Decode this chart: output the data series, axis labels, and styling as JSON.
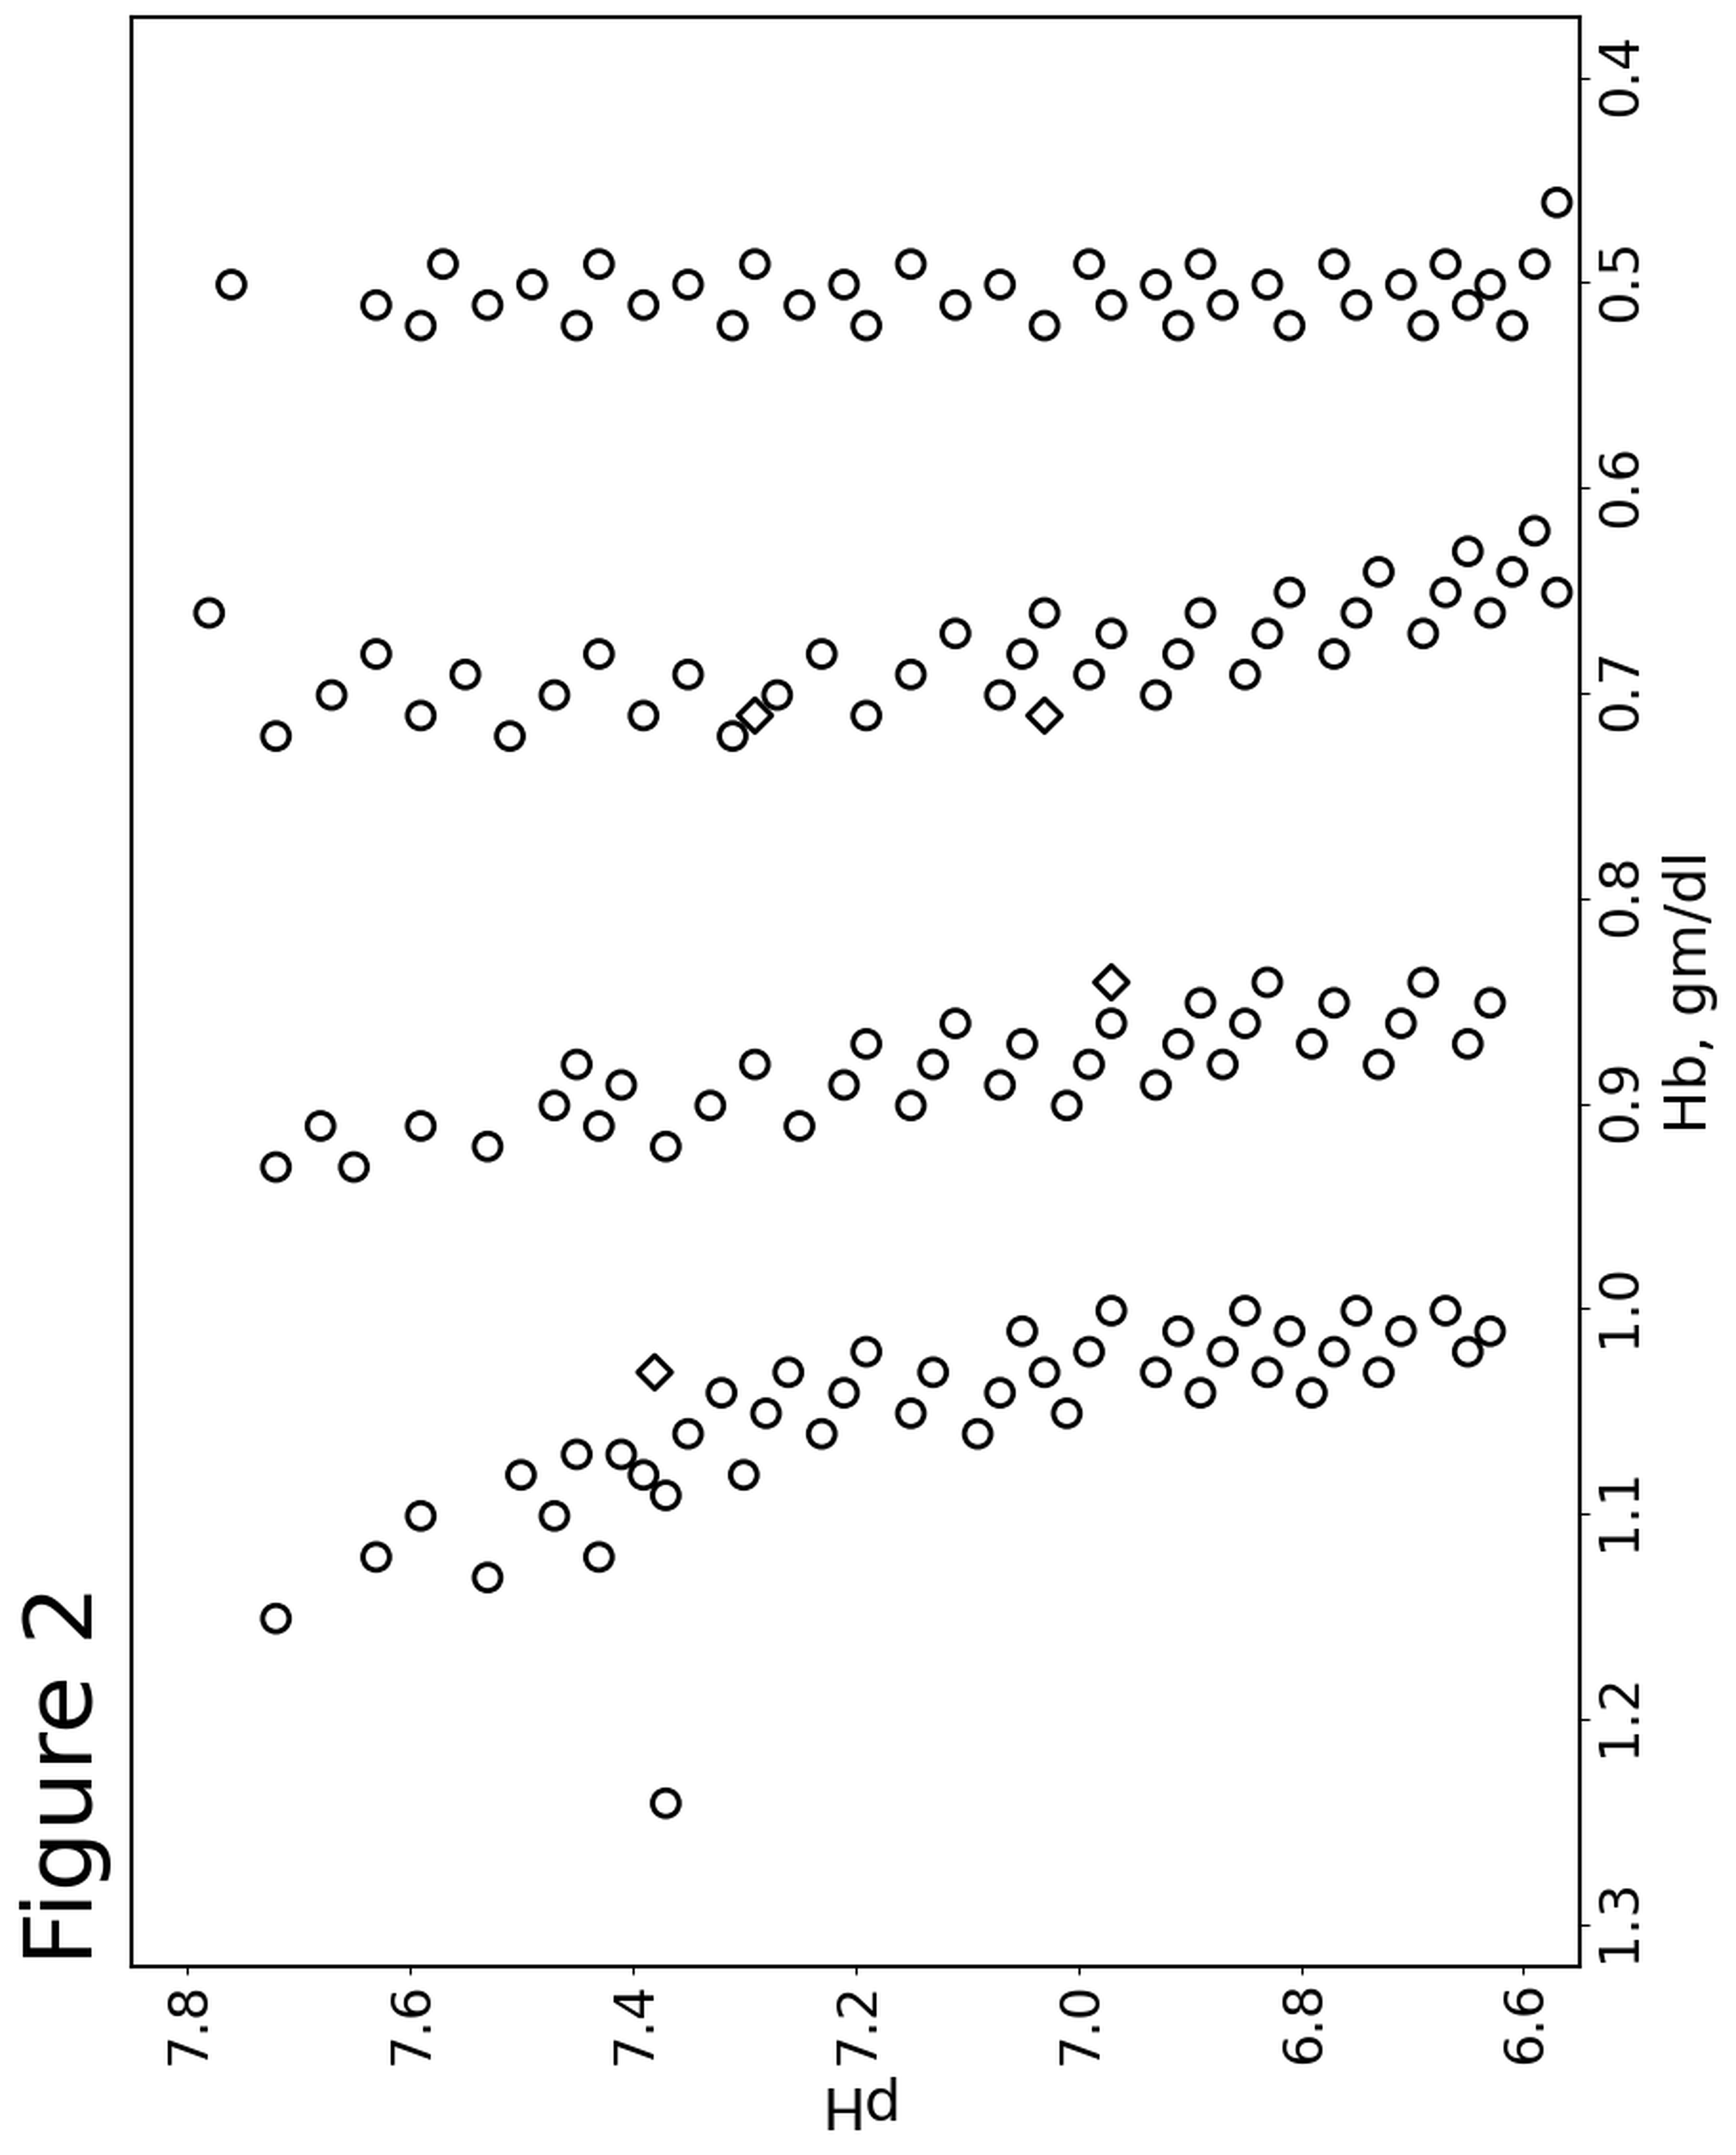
{
  "title": "Figure 2",
  "xlabel": "Hb, gm/dl",
  "ylabel": "pH",
  "xlim": [
    1.32,
    0.37
  ],
  "ylim": [
    6.55,
    7.85
  ],
  "xticks": [
    1.3,
    1.2,
    1.1,
    1.0,
    0.9,
    0.8,
    0.7,
    0.6,
    0.5,
    0.4
  ],
  "yticks": [
    6.6,
    6.8,
    7.0,
    7.2,
    7.4,
    7.6,
    7.8
  ],
  "circle_points": [
    [
      1.15,
      7.72
    ],
    [
      1.12,
      7.63
    ],
    [
      1.1,
      7.59
    ],
    [
      1.13,
      7.53
    ],
    [
      1.08,
      7.5
    ],
    [
      1.1,
      7.47
    ],
    [
      1.12,
      7.43
    ],
    [
      1.07,
      7.41
    ],
    [
      1.09,
      7.37
    ],
    [
      1.06,
      7.35
    ],
    [
      1.04,
      7.32
    ],
    [
      1.08,
      7.3
    ],
    [
      1.05,
      7.28
    ],
    [
      1.03,
      7.26
    ],
    [
      1.06,
      7.23
    ],
    [
      1.04,
      7.21
    ],
    [
      1.02,
      7.19
    ],
    [
      1.05,
      7.15
    ],
    [
      1.03,
      7.13
    ],
    [
      1.06,
      7.09
    ],
    [
      1.04,
      7.07
    ],
    [
      1.01,
      7.05
    ],
    [
      1.03,
      7.03
    ],
    [
      1.05,
      7.01
    ],
    [
      1.02,
      6.99
    ],
    [
      1.0,
      6.97
    ],
    [
      1.03,
      6.93
    ],
    [
      1.01,
      6.91
    ],
    [
      1.04,
      6.89
    ],
    [
      1.02,
      6.87
    ],
    [
      1.0,
      6.85
    ],
    [
      1.03,
      6.83
    ],
    [
      1.01,
      6.81
    ],
    [
      1.04,
      6.79
    ],
    [
      1.02,
      6.77
    ],
    [
      1.0,
      6.75
    ],
    [
      1.03,
      6.73
    ],
    [
      1.01,
      6.71
    ],
    [
      1.0,
      6.67
    ],
    [
      1.02,
      6.65
    ],
    [
      1.01,
      6.63
    ],
    [
      1.07,
      7.45
    ],
    [
      1.08,
      7.39
    ],
    [
      1.24,
      7.37
    ],
    [
      0.93,
      7.72
    ],
    [
      0.91,
      7.68
    ],
    [
      0.93,
      7.65
    ],
    [
      0.91,
      7.59
    ],
    [
      0.92,
      7.53
    ],
    [
      0.9,
      7.47
    ],
    [
      0.88,
      7.45
    ],
    [
      0.91,
      7.43
    ],
    [
      0.89,
      7.41
    ],
    [
      0.92,
      7.37
    ],
    [
      0.9,
      7.33
    ],
    [
      0.88,
      7.29
    ],
    [
      0.91,
      7.25
    ],
    [
      0.89,
      7.21
    ],
    [
      0.87,
      7.19
    ],
    [
      0.9,
      7.15
    ],
    [
      0.88,
      7.13
    ],
    [
      0.86,
      7.11
    ],
    [
      0.89,
      7.07
    ],
    [
      0.87,
      7.05
    ],
    [
      0.9,
      7.01
    ],
    [
      0.88,
      6.99
    ],
    [
      0.86,
      6.97
    ],
    [
      0.89,
      6.93
    ],
    [
      0.87,
      6.91
    ],
    [
      0.85,
      6.89
    ],
    [
      0.88,
      6.87
    ],
    [
      0.86,
      6.85
    ],
    [
      0.84,
      6.83
    ],
    [
      0.87,
      6.79
    ],
    [
      0.85,
      6.77
    ],
    [
      0.88,
      6.73
    ],
    [
      0.86,
      6.71
    ],
    [
      0.84,
      6.69
    ],
    [
      0.87,
      6.65
    ],
    [
      0.85,
      6.63
    ],
    [
      0.66,
      7.78
    ],
    [
      0.72,
      7.72
    ],
    [
      0.7,
      7.67
    ],
    [
      0.68,
      7.63
    ],
    [
      0.71,
      7.59
    ],
    [
      0.69,
      7.55
    ],
    [
      0.72,
      7.51
    ],
    [
      0.7,
      7.47
    ],
    [
      0.68,
      7.43
    ],
    [
      0.71,
      7.39
    ],
    [
      0.69,
      7.35
    ],
    [
      0.72,
      7.31
    ],
    [
      0.7,
      7.27
    ],
    [
      0.68,
      7.23
    ],
    [
      0.71,
      7.19
    ],
    [
      0.69,
      7.15
    ],
    [
      0.67,
      7.11
    ],
    [
      0.7,
      7.07
    ],
    [
      0.68,
      7.05
    ],
    [
      0.66,
      7.03
    ],
    [
      0.69,
      6.99
    ],
    [
      0.67,
      6.97
    ],
    [
      0.7,
      6.93
    ],
    [
      0.68,
      6.91
    ],
    [
      0.66,
      6.89
    ],
    [
      0.69,
      6.85
    ],
    [
      0.67,
      6.83
    ],
    [
      0.65,
      6.81
    ],
    [
      0.68,
      6.77
    ],
    [
      0.66,
      6.75
    ],
    [
      0.64,
      6.73
    ],
    [
      0.67,
      6.69
    ],
    [
      0.65,
      6.67
    ],
    [
      0.63,
      6.65
    ],
    [
      0.66,
      6.63
    ],
    [
      0.64,
      6.61
    ],
    [
      0.62,
      6.59
    ],
    [
      0.65,
      6.57
    ],
    [
      0.5,
      7.76
    ],
    [
      0.51,
      7.63
    ],
    [
      0.52,
      7.59
    ],
    [
      0.49,
      7.57
    ],
    [
      0.51,
      7.53
    ],
    [
      0.5,
      7.49
    ],
    [
      0.52,
      7.45
    ],
    [
      0.49,
      7.43
    ],
    [
      0.51,
      7.39
    ],
    [
      0.5,
      7.35
    ],
    [
      0.52,
      7.31
    ],
    [
      0.49,
      7.29
    ],
    [
      0.51,
      7.25
    ],
    [
      0.5,
      7.21
    ],
    [
      0.52,
      7.19
    ],
    [
      0.49,
      7.15
    ],
    [
      0.51,
      7.11
    ],
    [
      0.5,
      7.07
    ],
    [
      0.52,
      7.03
    ],
    [
      0.49,
      6.99
    ],
    [
      0.51,
      6.97
    ],
    [
      0.5,
      6.93
    ],
    [
      0.52,
      6.91
    ],
    [
      0.49,
      6.89
    ],
    [
      0.51,
      6.87
    ],
    [
      0.5,
      6.83
    ],
    [
      0.52,
      6.81
    ],
    [
      0.49,
      6.77
    ],
    [
      0.51,
      6.75
    ],
    [
      0.5,
      6.71
    ],
    [
      0.52,
      6.69
    ],
    [
      0.49,
      6.67
    ],
    [
      0.51,
      6.65
    ],
    [
      0.5,
      6.63
    ],
    [
      0.52,
      6.61
    ],
    [
      0.49,
      6.59
    ],
    [
      0.46,
      6.57
    ],
    [
      0.48,
      6.53
    ]
  ],
  "diamond_points": [
    [
      1.03,
      7.38
    ],
    [
      0.84,
      6.97
    ],
    [
      0.71,
      7.03
    ],
    [
      0.71,
      7.29
    ]
  ],
  "bg_color": "#f0f0f0",
  "plot_bg_color": "#ffffff",
  "title_fontsize": 36,
  "label_fontsize": 22,
  "tick_fontsize": 20,
  "marker_size": 100,
  "marker_lw": 2.0
}
